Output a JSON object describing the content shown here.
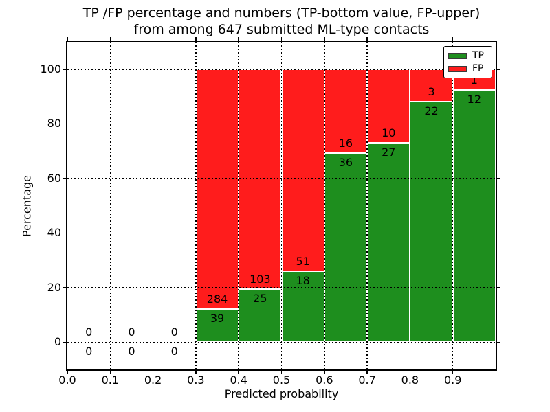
{
  "figure": {
    "title_line1": "TP /FP percentage and numbers (TP-bottom value, FP-upper)",
    "title_line2": "from among 647 submitted ML-type contacts",
    "xlabel": "Predicted probability",
    "ylabel": "Percentage"
  },
  "legend": {
    "items": [
      {
        "label": "TP",
        "color": "#1e8e1e"
      },
      {
        "label": "FP",
        "color": "#ff1c1c"
      }
    ]
  },
  "colors": {
    "tp_green": "#1e8e1e",
    "fp_red": "#ff1c1c",
    "grid": "#000000",
    "bar_edge": "#ffffff",
    "background": "#ffffff"
  },
  "chart_data": {
    "type": "bar",
    "stacked": true,
    "title": "TP /FP percentage and numbers (TP-bottom value, FP-upper) from among 647 submitted ML-type contacts",
    "xlabel": "Predicted probability",
    "ylabel": "Percentage",
    "xlim": [
      0,
      1
    ],
    "ylim": [
      -10,
      110
    ],
    "bin_width": 0.1,
    "bin_centers": [
      0.05,
      0.15,
      0.25,
      0.35,
      0.45,
      0.55,
      0.65,
      0.75,
      0.85,
      0.95
    ],
    "series": [
      {
        "name": "TP",
        "color": "#1e8e1e",
        "counts": [
          0,
          0,
          0,
          39,
          25,
          18,
          36,
          27,
          22,
          12
        ]
      },
      {
        "name": "FP",
        "color": "#ff1c1c",
        "counts": [
          0,
          0,
          0,
          284,
          103,
          51,
          16,
          10,
          3,
          1
        ]
      }
    ],
    "bar_total_percent": 100,
    "total_contacts": 647,
    "x_ticks": [
      {
        "value": 0.0,
        "label": "0.0"
      },
      {
        "value": 0.1,
        "label": "0.1"
      },
      {
        "value": 0.2,
        "label": "0.2"
      },
      {
        "value": 0.3,
        "label": "0.3"
      },
      {
        "value": 0.4,
        "label": "0.4"
      },
      {
        "value": 0.5,
        "label": "0.5"
      },
      {
        "value": 0.6,
        "label": "0.6"
      },
      {
        "value": 0.7,
        "label": "0.7"
      },
      {
        "value": 0.8,
        "label": "0.8"
      },
      {
        "value": 0.9,
        "label": "0.9"
      }
    ],
    "y_ticks": [
      {
        "value": 0,
        "label": "0"
      },
      {
        "value": 20,
        "label": "20"
      },
      {
        "value": 40,
        "label": "40"
      },
      {
        "value": 60,
        "label": "60"
      },
      {
        "value": 80,
        "label": "80"
      },
      {
        "value": 100,
        "label": "100"
      }
    ],
    "grid": {
      "x_values": [
        0.1,
        0.2,
        0.3,
        0.4,
        0.5,
        0.6,
        0.7,
        0.8,
        0.9
      ],
      "y_values": [
        0,
        20,
        40,
        60,
        80,
        100
      ],
      "style": "dotted",
      "on_top_of_bars": true
    },
    "legend_position": "upper right"
  }
}
